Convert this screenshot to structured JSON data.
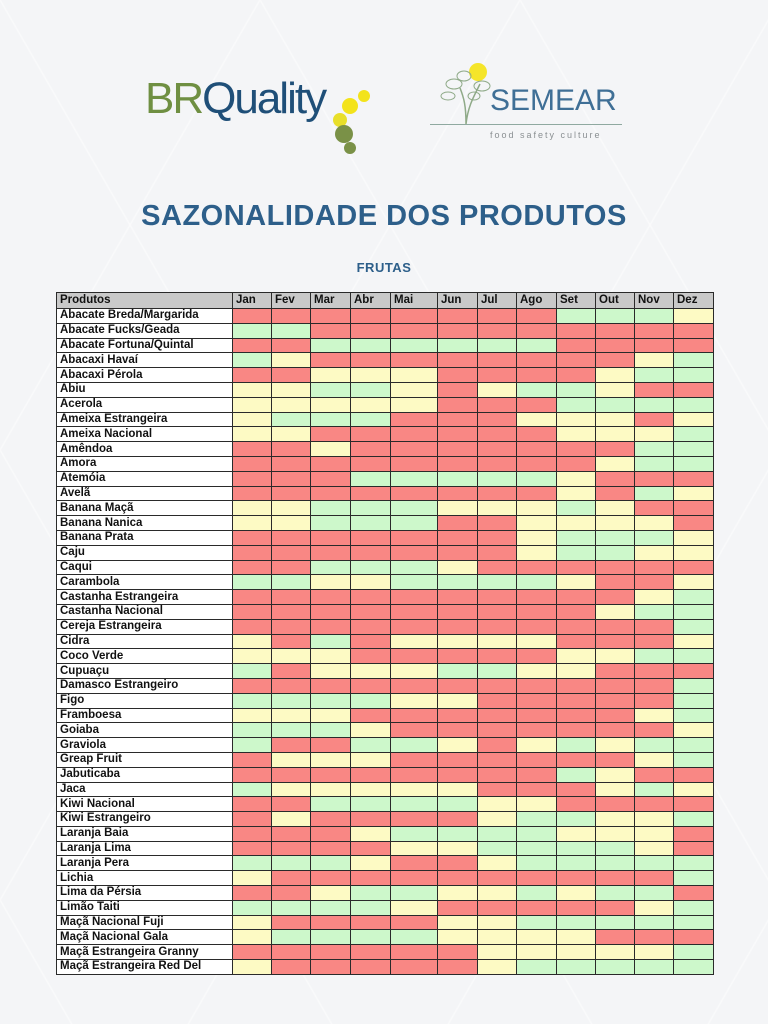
{
  "header": {
    "logo_left": {
      "part1": "BR",
      "part2": "Quality"
    },
    "logo_right": {
      "name": "SEMEAR",
      "tagline": "food safety culture"
    },
    "title": "SAZONALIDADE DOS PRODUTOS",
    "subtitle": "FRUTAS"
  },
  "legend_colors": {
    "R": "#f98784",
    "G": "#cdf8cb",
    "Y": "#fdfac4"
  },
  "table": {
    "product_header": "Produtos",
    "months": [
      "Jan",
      "Fev",
      "Mar",
      "Abr",
      "Mai",
      "Jun",
      "Jul",
      "Ago",
      "Set",
      "Out",
      "Nov",
      "Dez"
    ],
    "rows": [
      {
        "name": "Abacate Breda/Margarida",
        "cells": "RRRRRRRRGGGY"
      },
      {
        "name": "Abacate Fucks/Geada",
        "cells": "GGRRRRRRRRRR"
      },
      {
        "name": "Abacate Fortuna/Quintal",
        "cells": "RRGGGGGGRRRR"
      },
      {
        "name": "Abacaxi Havaí",
        "cells": "GYRRRRRRRRYG"
      },
      {
        "name": "Abacaxi Pérola",
        "cells": "RRYYYRRRRYGG"
      },
      {
        "name": "Abiu",
        "cells": "YYGGYRYGGYRR"
      },
      {
        "name": "Acerola",
        "cells": "YYYYYRRRGGGG"
      },
      {
        "name": "Ameixa Estrangeira",
        "cells": "YGGGRRRYYYRY"
      },
      {
        "name": "Ameixa Nacional",
        "cells": "YYRRRRRRYYYG"
      },
      {
        "name": "Amêndoa",
        "cells": "RRYRRRRRRRGG"
      },
      {
        "name": "Amora",
        "cells": "RRRRRRRRRYGG"
      },
      {
        "name": "Atemóia",
        "cells": "RRRGGGGGYRRR"
      },
      {
        "name": "Avelã",
        "cells": "RRRRRRRRYRGY"
      },
      {
        "name": "Banana Maçã",
        "cells": "YYGGGYYYGYRR"
      },
      {
        "name": "Banana Nanica",
        "cells": "YYGGGRRYYYYR"
      },
      {
        "name": "Banana Prata",
        "cells": "RRRRRRRYGGGY"
      },
      {
        "name": "Caju",
        "cells": "RRRRRRRYGGYY"
      },
      {
        "name": "Caqui",
        "cells": "RRGGGYRRRRRR"
      },
      {
        "name": "Carambola",
        "cells": "GGYYGGGGYRRY"
      },
      {
        "name": "Castanha Estrangeira",
        "cells": "RRRRRRRRRRYG"
      },
      {
        "name": "Castanha Nacional",
        "cells": "RRRRRRRRRYGG"
      },
      {
        "name": "Cereja Estrangeira",
        "cells": "RRRRRRRRRRRG"
      },
      {
        "name": "Cidra",
        "cells": "YRGRYYYYRRRY"
      },
      {
        "name": "Coco Verde",
        "cells": "YYYRRRRRYYGG"
      },
      {
        "name": "Cupuaçu",
        "cells": "GRYYYGGYYRRR"
      },
      {
        "name": "Damasco Estrangeiro",
        "cells": "RRRRRRRRRRRG"
      },
      {
        "name": "Figo",
        "cells": "GGGGYYRRRRRG"
      },
      {
        "name": "Framboesa",
        "cells": "YYYRRRRRRRYG"
      },
      {
        "name": "Goiaba",
        "cells": "GGGYRRRRRRRY"
      },
      {
        "name": "Graviola",
        "cells": "GRRGGYRYGYGG"
      },
      {
        "name": "Greap Fruit",
        "cells": "RYYYRRRRRRYG"
      },
      {
        "name": "Jabuticaba",
        "cells": "RRRRRRRRGYRR"
      },
      {
        "name": "Jaca",
        "cells": "GYYYYYRRRYGY"
      },
      {
        "name": "Kiwi Nacional",
        "cells": "RRGGGGYYRRRR"
      },
      {
        "name": "Kiwi Estrangeiro",
        "cells": "RYRRRRYGGYYG"
      },
      {
        "name": "Laranja Baia",
        "cells": "RRRYGGGGYYYR"
      },
      {
        "name": "Laranja Lima",
        "cells": "RRRRYYGGGGYR"
      },
      {
        "name": "Laranja Pera",
        "cells": "GGGYRRYGGGGG"
      },
      {
        "name": "Lichia",
        "cells": "YRRRRRRRRRRG"
      },
      {
        "name": "Lima da Pérsia",
        "cells": "RRYGGYYGYGGR"
      },
      {
        "name": "Limão Taiti",
        "cells": "GGGGYRRRRRYG"
      },
      {
        "name": "Maçã Nacional Fuji",
        "cells": "YRRRRYYGGGGG"
      },
      {
        "name": "Maçã Nacional Gala",
        "cells": "YGGGGYYYYRRR"
      },
      {
        "name": "Maçã Estrangeira Granny",
        "cells": "RRRRRRYYYYYG"
      },
      {
        "name": "Maçã Estrangeira Red Del",
        "cells": "YRRRRRYGGGGG"
      }
    ]
  }
}
